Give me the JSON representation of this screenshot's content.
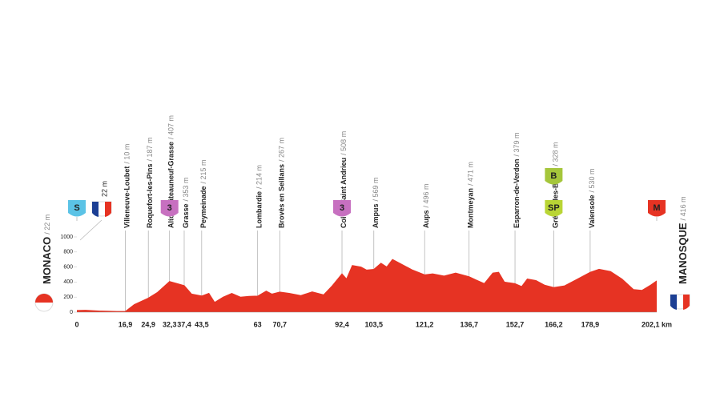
{
  "chart_data": {
    "type": "area",
    "color": "#e63323",
    "start": {
      "name": "MONACO",
      "elevation": "/ 22 m"
    },
    "finish": {
      "name": "MANOSQUE",
      "elevation": "/ 416 m"
    },
    "start_sprint_elevation": "22 m",
    "badges": [
      "S",
      "3",
      "3",
      "B",
      "SP",
      "M"
    ],
    "waypoints": [
      {
        "name": "Villeneuve-Loubet",
        "elevation": "/ 10 m"
      },
      {
        "name": "Roquefort-les-Pins",
        "elevation": "/ 187 m"
      },
      {
        "name": "Alto Châteauneuf-Grasse",
        "elevation": "/ 407 m"
      },
      {
        "name": "Grasse",
        "elevation": "/ 353 m"
      },
      {
        "name": "Peymeinade",
        "elevation": "/ 215 m"
      },
      {
        "name": "Lombardie",
        "elevation": "/ 214 m"
      },
      {
        "name": "Brovès en Seillans",
        "elevation": "/ 267 m"
      },
      {
        "name": "Col de Saint Andrieu",
        "elevation": "/ 508 m"
      },
      {
        "name": "Ampus",
        "elevation": "/ 569 m"
      },
      {
        "name": "Aups",
        "elevation": "/ 496 m"
      },
      {
        "name": "Montmeyan",
        "elevation": "/ 471 m"
      },
      {
        "name": "Esparron-de-Verdon",
        "elevation": "/ 379 m"
      },
      {
        "name": "Gréoux-les-Bains",
        "elevation": "/ 328 m"
      },
      {
        "name": "Valensole",
        "elevation": "/ 530 m"
      }
    ],
    "x": [
      0,
      3,
      8,
      14,
      16.9,
      20,
      24.9,
      28,
      32.3,
      35,
      37.4,
      40,
      43.5,
      46,
      48,
      51,
      54,
      57,
      60,
      63,
      66,
      68,
      70.7,
      74,
      78,
      82,
      86,
      89,
      92.4,
      94,
      96,
      99,
      101,
      103.5,
      106,
      108,
      110,
      113,
      117,
      121.2,
      124,
      128,
      132,
      136.7,
      139,
      142,
      145,
      147,
      149,
      152.7,
      155,
      157,
      160,
      163,
      166.2,
      170,
      174,
      178.9,
      182,
      186,
      190,
      194,
      197,
      200,
      202.1
    ],
    "values": [
      22,
      25,
      15,
      10,
      10,
      100,
      187,
      260,
      407,
      380,
      353,
      240,
      215,
      250,
      130,
      200,
      250,
      200,
      210,
      214,
      280,
      240,
      267,
      250,
      220,
      270,
      230,
      350,
      508,
      440,
      620,
      600,
      560,
      569,
      650,
      600,
      700,
      640,
      560,
      496,
      510,
      480,
      520,
      471,
      430,
      380,
      520,
      530,
      400,
      379,
      340,
      440,
      420,
      360,
      328,
      350,
      430,
      530,
      570,
      540,
      440,
      300,
      290,
      360,
      416
    ],
    "xlim": [
      0,
      202.1
    ],
    "xticks": [
      0,
      {
        "value": 16.9,
        "label": "16,9"
      },
      {
        "value": 24.9,
        "label": "24,9"
      },
      {
        "value": 32.3,
        "label": "32,3"
      },
      {
        "value": 37.4,
        "label": "37,4"
      },
      {
        "value": 43.5,
        "label": "43,5"
      },
      63,
      {
        "value": 70.7,
        "label": "70,7"
      },
      {
        "value": 92.4,
        "label": "92,4"
      },
      {
        "value": 103.5,
        "label": "103,5"
      },
      {
        "value": 121.2,
        "label": "121,2"
      },
      {
        "value": 136.7,
        "label": "136,7"
      },
      {
        "value": 152.7,
        "label": "152,7"
      },
      {
        "value": 166.2,
        "label": "166,2"
      },
      {
        "value": 178.9,
        "label": "178,9"
      },
      {
        "value": 202.1,
        "label": "202,1 km"
      }
    ],
    "ylim": [
      0,
      1000
    ],
    "yticks": [
      0,
      200,
      400,
      600,
      800,
      1000
    ]
  }
}
